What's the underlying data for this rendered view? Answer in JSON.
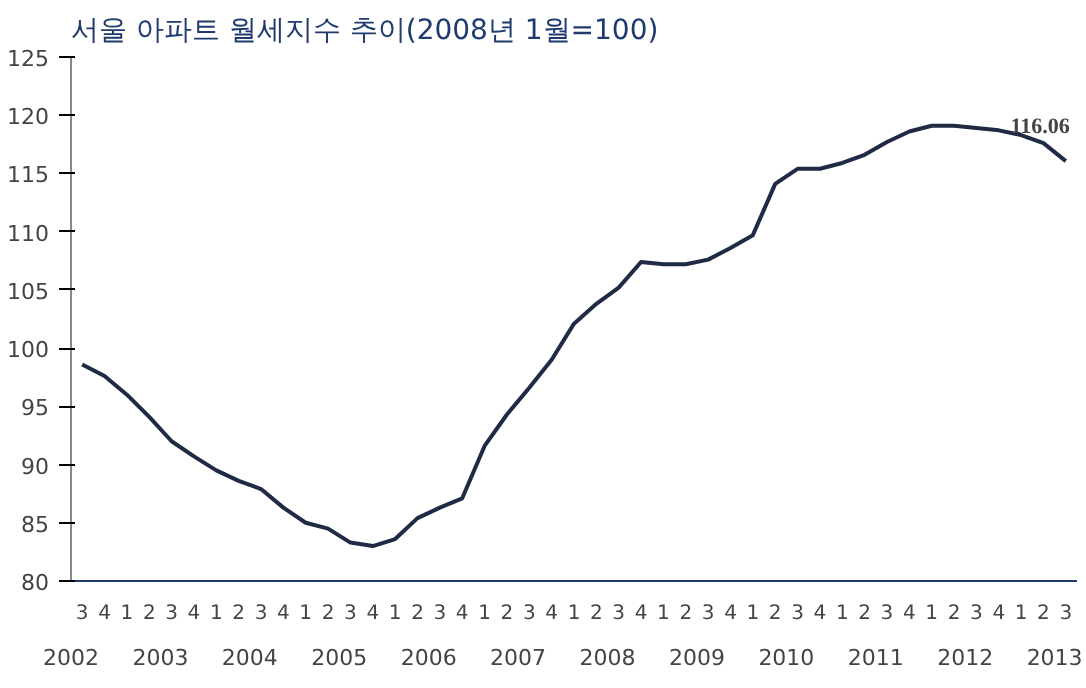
{
  "chart_data": {
    "type": "line",
    "title": "서울 아파트 월세지수 추이(2008년 1월=100)",
    "categories": [
      "3",
      "4",
      "1",
      "2",
      "3",
      "4",
      "1",
      "2",
      "3",
      "4",
      "1",
      "2",
      "3",
      "4",
      "1",
      "2",
      "3",
      "4",
      "1",
      "2",
      "3",
      "4",
      "1",
      "2",
      "3",
      "4",
      "1",
      "2",
      "3",
      "4",
      "1",
      "2",
      "3",
      "4",
      "1",
      "2",
      "3",
      "4",
      "1",
      "2",
      "3",
      "4",
      "1",
      "2",
      "3"
    ],
    "series": [
      {
        "color": "#1f2a44",
        "values": [
          98.6,
          97.6,
          96.0,
          94.1,
          92.0,
          90.7,
          89.5,
          88.6,
          87.9,
          86.3,
          85.0,
          84.5,
          83.3,
          83.0,
          83.6,
          85.4,
          86.3,
          87.1,
          91.6,
          94.3,
          96.6,
          99.0,
          102.1,
          103.8,
          105.2,
          107.4,
          107.2,
          107.2,
          107.6,
          108.6,
          109.7,
          114.1,
          115.4,
          115.4,
          115.9,
          116.6,
          117.7,
          118.6,
          119.1,
          119.1,
          118.9,
          118.7,
          118.3,
          117.6,
          116.06
        ],
        "value_labels": [
          null,
          null,
          null,
          null,
          null,
          null,
          null,
          null,
          null,
          null,
          null,
          null,
          null,
          null,
          null,
          null,
          null,
          null,
          null,
          null,
          null,
          null,
          null,
          null,
          null,
          null,
          null,
          null,
          null,
          null,
          null,
          null,
          null,
          null,
          null,
          null,
          null,
          null,
          null,
          null,
          null,
          null,
          null,
          null,
          "116.06"
        ]
      }
    ],
    "x2lim": [
      2002.0,
      2013.25
    ],
    "x2ticks": [
      2002,
      2003,
      2004,
      2005,
      2006,
      2007,
      2008,
      2009,
      2010,
      2011,
      2012,
      2013
    ],
    "ylim": [
      80,
      125
    ],
    "yticks": [
      80,
      85,
      90,
      95,
      100,
      105,
      110,
      115,
      120,
      125
    ],
    "grid": false,
    "marker": "none",
    "line_style": "solid"
  }
}
